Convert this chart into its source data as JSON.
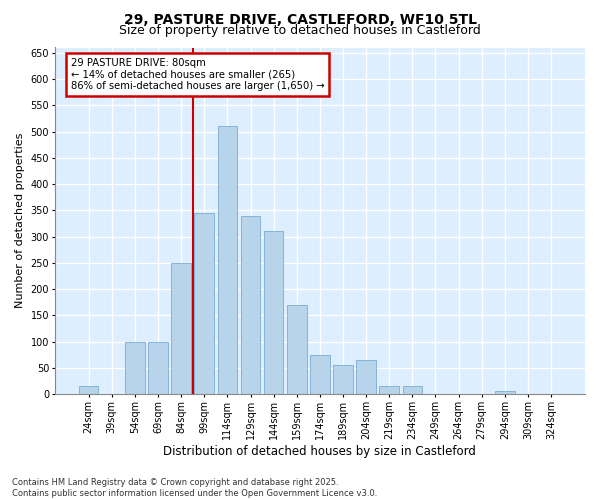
{
  "title_line1": "29, PASTURE DRIVE, CASTLEFORD, WF10 5TL",
  "title_line2": "Size of property relative to detached houses in Castleford",
  "xlabel": "Distribution of detached houses by size in Castleford",
  "ylabel": "Number of detached properties",
  "bar_color": "#b8d4ea",
  "bar_edge_color": "#7aadd4",
  "categories": [
    "24sqm",
    "39sqm",
    "54sqm",
    "69sqm",
    "84sqm",
    "99sqm",
    "114sqm",
    "129sqm",
    "144sqm",
    "159sqm",
    "174sqm",
    "189sqm",
    "204sqm",
    "219sqm",
    "234sqm",
    "249sqm",
    "264sqm",
    "279sqm",
    "294sqm",
    "309sqm",
    "324sqm"
  ],
  "values": [
    15,
    0,
    100,
    100,
    250,
    345,
    510,
    340,
    310,
    170,
    75,
    55,
    65,
    15,
    15,
    0,
    0,
    0,
    5,
    0,
    0
  ],
  "ylim": [
    0,
    660
  ],
  "yticks": [
    0,
    50,
    100,
    150,
    200,
    250,
    300,
    350,
    400,
    450,
    500,
    550,
    600,
    650
  ],
  "vline_x": 4.5,
  "annotation_text": "29 PASTURE DRIVE: 80sqm\n← 14% of detached houses are smaller (265)\n86% of semi-detached houses are larger (1,650) →",
  "annotation_box_color": "#ffffff",
  "annotation_box_edge": "#cc0000",
  "vline_color": "#cc0000",
  "footnote": "Contains HM Land Registry data © Crown copyright and database right 2025.\nContains public sector information licensed under the Open Government Licence v3.0.",
  "bg_color": "#ddeeff",
  "grid_color": "#ffffff",
  "fig_bg_color": "#ffffff",
  "title_fontsize": 10,
  "subtitle_fontsize": 9,
  "tick_fontsize": 7,
  "xlabel_fontsize": 8.5,
  "ylabel_fontsize": 8
}
